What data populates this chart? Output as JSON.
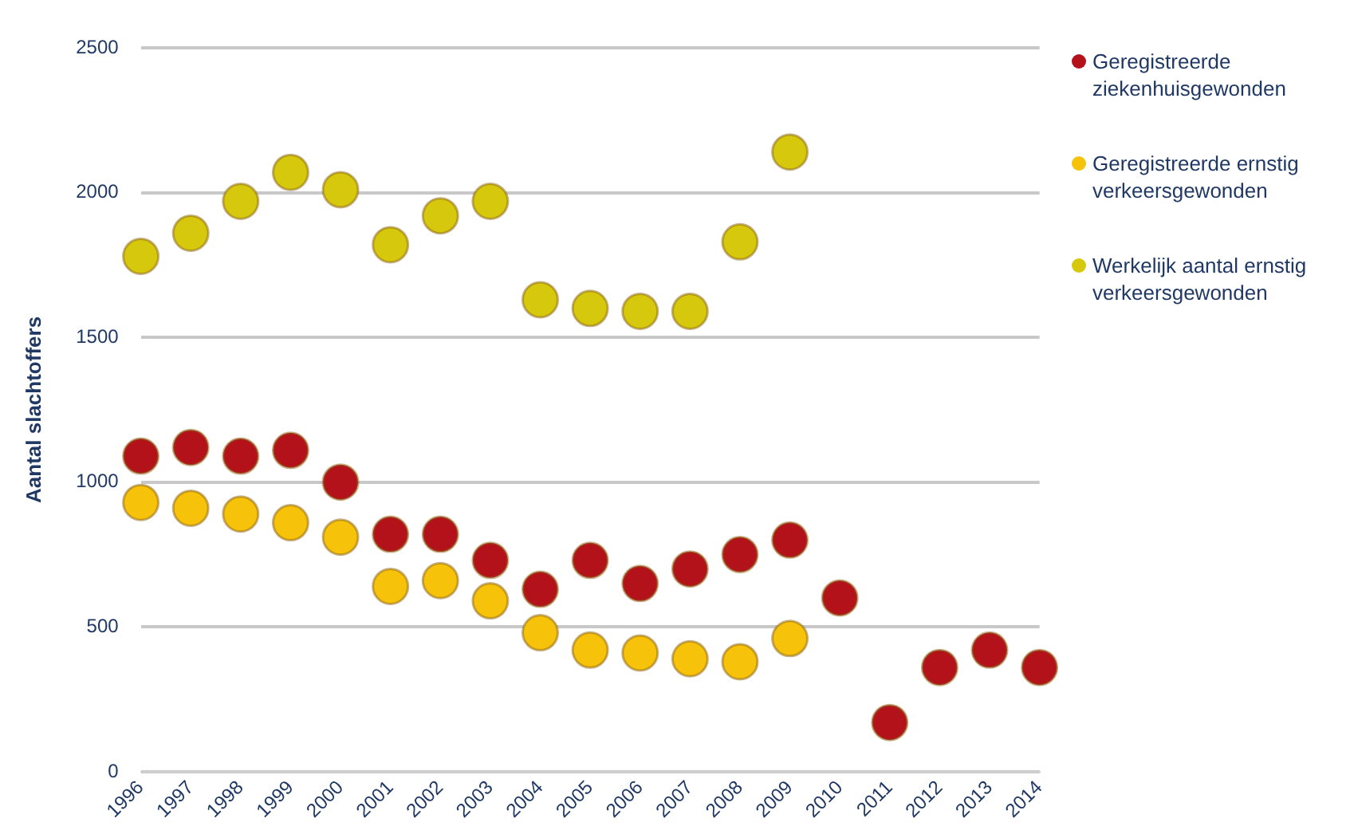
{
  "chart_data": {
    "type": "scatter",
    "ylabel": "Aantal slachtoffers",
    "categories": [
      "1996",
      "1997",
      "1998",
      "1999",
      "2000",
      "2001",
      "2002",
      "2003",
      "2004",
      "2005",
      "2006",
      "2007",
      "2008",
      "2009",
      "2010",
      "2011",
      "2012",
      "2013",
      "2014"
    ],
    "series": [
      {
        "name": "Geregistreerde ziekenhuisgewonden",
        "color": "#b3121b",
        "values": [
          1090,
          1120,
          1090,
          1110,
          1000,
          820,
          820,
          730,
          630,
          730,
          650,
          700,
          750,
          800,
          600,
          170,
          360,
          420,
          360
        ]
      },
      {
        "name": "Geregistreerde ernstig verkeersgewonden",
        "color": "#f7c20a",
        "values": [
          930,
          910,
          890,
          860,
          810,
          640,
          660,
          590,
          480,
          420,
          410,
          390,
          380,
          460,
          null,
          null,
          null,
          null,
          null
        ]
      },
      {
        "name": "Werkelijk aantal ernstig verkeersgewonden",
        "color": "#d6c80c",
        "values": [
          1780,
          1860,
          1970,
          2070,
          2010,
          1820,
          1920,
          1970,
          1630,
          1600,
          1590,
          1590,
          1830,
          2140,
          null,
          null,
          null,
          null,
          null
        ]
      }
    ],
    "ylim": [
      0,
      2500
    ],
    "yticks": [
      0,
      500,
      1000,
      1500,
      2000,
      2500
    ],
    "grid": "y",
    "legend": "right",
    "marker": "circle"
  }
}
